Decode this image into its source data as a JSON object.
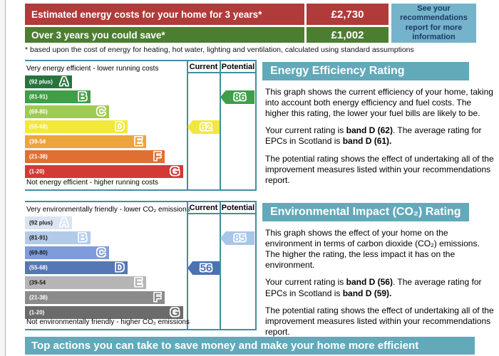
{
  "summary_table": {
    "rows": [
      {
        "label": "Estimated energy costs for your home for 3 years*",
        "value": "£2,730",
        "color": "#b13a3a"
      },
      {
        "label": "Over 3 years you could save*",
        "value": "£1,002",
        "color": "#4c7e31"
      }
    ],
    "side_note": "See your recommendations report for more information"
  },
  "footnote": "* based upon the cost of energy for heating, hot water, lighting and ventilation, calculated using standard assumptions",
  "charts": [
    {
      "panel_title": "Energy Efficiency Rating",
      "top_caption": "Very energy efficient - lower running costs",
      "bottom_caption": "Not energy efficient - higher running costs",
      "columns": {
        "current": "Current",
        "potential": "Potential"
      },
      "bands": [
        {
          "letter": "A",
          "range": "(92 plus)",
          "color": "#27743d",
          "text_color": "#ffffff"
        },
        {
          "letter": "B",
          "range": "(81-91)",
          "color": "#3f9e47",
          "text_color": "#ffffff"
        },
        {
          "letter": "C",
          "range": "(69-80)",
          "color": "#9ecb50",
          "text_color": "#ffffff"
        },
        {
          "letter": "D",
          "range": "(55-68)",
          "color": "#f2e83b",
          "text_color": "#ffffff"
        },
        {
          "letter": "E",
          "range": "(39-54",
          "color": "#eea43c",
          "text_color": "#ffffff"
        },
        {
          "letter": "F",
          "range": "(21-38)",
          "color": "#e06f33",
          "text_color": "#ffffff"
        },
        {
          "letter": "G",
          "range": "(1-20)",
          "color": "#d23a34",
          "text_color": "#ffffff"
        }
      ],
      "current": {
        "value": "62",
        "band": "D",
        "band_index": 3,
        "color": "#f2e83b"
      },
      "potential": {
        "value": "86",
        "band": "B",
        "band_index": 1,
        "color": "#3f9e47"
      },
      "p1": "This graph shows the current efficiency of your home, taking into account both energy efficiency and fuel costs. The higher this rating, the lower your fuel bills are likely to be.",
      "p2_pre": "Your current rating is ",
      "p2_bold1": "band D (62)",
      "p2_mid": ". The average rating for EPCs in Scotland is ",
      "p2_bold2": "band D (61).",
      "p3": "The potential rating shows the effect of undertaking all of the improvement measures listed within your recommendations report."
    },
    {
      "panel_title": "Environmental Impact (CO₂) Rating",
      "top_caption": "Very environmentally friendly - lower CO₂ emissions",
      "bottom_caption": "Not environmentally friendly - higher CO₂ emissions",
      "columns": {
        "current": "Current",
        "potential": "Potential"
      },
      "bands": [
        {
          "letter": "A",
          "range": "(92 plus)",
          "color": "#dbe4f2",
          "text_color": "#1a1a1a"
        },
        {
          "letter": "B",
          "range": "(81-91)",
          "color": "#b3cbe9",
          "text_color": "#1a1a1a"
        },
        {
          "letter": "C",
          "range": "(69-80)",
          "color": "#7e9cdb",
          "text_color": "#1a1a1a"
        },
        {
          "letter": "D",
          "range": "(55-68)",
          "color": "#5577b5",
          "text_color": "#ffffff"
        },
        {
          "letter": "E",
          "range": "(39-54",
          "color": "#b5b5b5",
          "text_color": "#1a1a1a"
        },
        {
          "letter": "F",
          "range": "(21-38)",
          "color": "#8b8b8b",
          "text_color": "#ffffff"
        },
        {
          "letter": "G",
          "range": "(1-20)",
          "color": "#6b6b6b",
          "text_color": "#ffffff"
        }
      ],
      "current": {
        "value": "56",
        "band": "D",
        "band_index": 3,
        "color": "#4a72b4"
      },
      "potential": {
        "value": "85",
        "band": "B",
        "band_index": 1,
        "color": "#a9c5e8"
      },
      "p1": "This graph shows the effect of your home on the environment in terms of carbon dioxide (CO₂) emissions. The higher the rating, the less impact it has on the environment.",
      "p2_pre": "Your current rating is ",
      "p2_bold1": "band D (56)",
      "p2_mid": ". The average rating for EPCs in Scotland is ",
      "p2_bold2": "band D (59).",
      "p3": "The potential rating shows the effect of undertaking all of the improvement measures listed within your recommendations report."
    }
  ],
  "bottom_banner": "Top actions you can take to save money and make your home more efficient",
  "chart_data": [
    {
      "type": "bar",
      "title": "Energy Efficiency Rating",
      "categories": [
        "A (92 plus)",
        "B (81-91)",
        "C (69-80)",
        "D (55-68)",
        "E (39-54)",
        "F (21-38)",
        "G (1-20)"
      ],
      "current_rating": 62,
      "current_band": "D",
      "potential_rating": 86,
      "potential_band": "B",
      "average_note": "average for EPCs in Scotland is band D (61)"
    },
    {
      "type": "bar",
      "title": "Environmental Impact (CO₂) Rating",
      "categories": [
        "A (92 plus)",
        "B (81-91)",
        "C (69-80)",
        "D (55-68)",
        "E (39-54)",
        "F (21-38)",
        "G (1-20)"
      ],
      "current_rating": 56,
      "current_band": "D",
      "potential_rating": 85,
      "potential_band": "B",
      "average_note": "average for EPCs in Scotland is band D (59)"
    }
  ],
  "colors": {
    "teal_header": "#62a9ba",
    "chart_border": "#3f8fa1",
    "side_note_bg": "#74b3c9",
    "side_note_text": "#1d3a66"
  }
}
